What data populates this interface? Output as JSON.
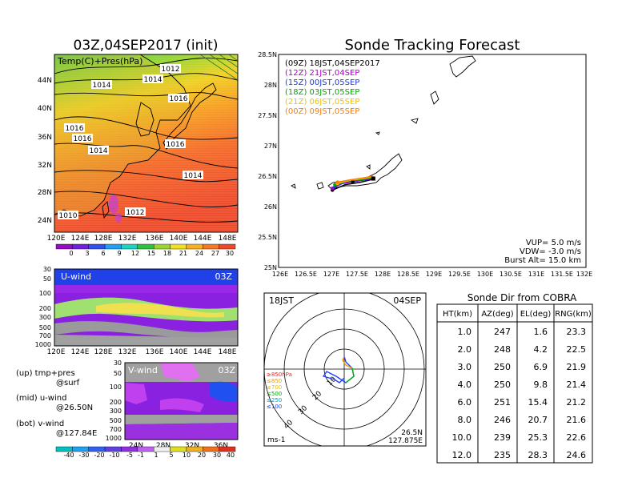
{
  "map_panel": {
    "title": "03Z,04SEP2017 (init)",
    "field_label": "Temp(C)+Pres(hPa)",
    "lon_ticks": [
      "120E",
      "124E",
      "128E",
      "132E",
      "136E",
      "140E",
      "144E",
      "148E"
    ],
    "lat_ticks": [
      "24N",
      "28N",
      "32N",
      "36N",
      "40N",
      "44N"
    ],
    "isobar_labels": [
      "1012",
      "1014",
      "1014",
      "1016",
      "1016",
      "1016",
      "1014",
      "1016",
      "1014",
      "1012",
      "1010"
    ],
    "colorbar_ticks": [
      "0",
      "3",
      "6",
      "9",
      "12",
      "15",
      "18",
      "21",
      "24",
      "27",
      "30"
    ]
  },
  "u_panel": {
    "label": "U-wind",
    "time": "03Z",
    "y_ticks": [
      "30",
      "50",
      "100",
      "200",
      "300",
      "500",
      "700",
      "1000"
    ],
    "x_ticks": [
      "120E",
      "124E",
      "128E",
      "132E",
      "136E",
      "140E",
      "144E",
      "148E"
    ]
  },
  "v_panel": {
    "label": "V-wind",
    "time": "03Z",
    "y_ticks": [
      "30",
      "50",
      "100",
      "200",
      "300",
      "500",
      "700",
      "1000"
    ],
    "x_ticks": [
      "24N",
      "28N",
      "32N",
      "36N"
    ],
    "wind_colorbar_ticks": [
      "-40",
      "-30",
      "-20",
      "-10",
      "-5",
      "-1",
      "1",
      "5",
      "10",
      "20",
      "30",
      "40"
    ]
  },
  "legend_notes": {
    "up1": "(up) tmp+pres",
    "up2": "@surf",
    "mid1": "(mid) u-wind",
    "mid2": "@26.50N",
    "bot1": "(bot) v-wind",
    "bot2": "@127.84E"
  },
  "tracking": {
    "title": "Sonde Tracking Forecast",
    "lat_ticks": [
      "25N",
      "25.5N",
      "26N",
      "26.5N",
      "27N",
      "27.5N",
      "28N",
      "28.5N"
    ],
    "lon_ticks": [
      "126E",
      "126.5E",
      "127E",
      "127.5E",
      "128E",
      "128.5E",
      "129E",
      "129.5E",
      "130E",
      "130.5E",
      "131E",
      "131.5E",
      "132E"
    ],
    "legend": [
      {
        "label": "(09Z)  18JST,04SEP2017",
        "color": "#000000"
      },
      {
        "label": "(12Z)  21JST,04SEP",
        "color": "#aa00cc"
      },
      {
        "label": "(15Z)  00JST,05SEP",
        "color": "#1a3ae6"
      },
      {
        "label": "(18Z)  03JST,05SEP",
        "color": "#00a800"
      },
      {
        "label": "(21Z)  06JST,05SEP",
        "color": "#f0c000"
      },
      {
        "label": "(00Z)  09JST,05SEP",
        "color": "#ff7a00"
      }
    ],
    "params": [
      "VUP= 5.0 m/s",
      "VDW= -3.0 m/s",
      "Burst Alt= 15.0 km"
    ]
  },
  "hodograph": {
    "time": "18JST",
    "date": "04SEP",
    "ring_labels": [
      "10",
      "20",
      "30",
      "40"
    ],
    "level_legend": [
      {
        "label": "≥850hPa",
        "color": "#ff2020"
      },
      {
        "label": "≤850",
        "color": "#ff9900"
      },
      {
        "label": "≤700",
        "color": "#e6c000"
      },
      {
        "label": "≤500",
        "color": "#00b000"
      },
      {
        "label": "≤250",
        "color": "#00a0d0"
      },
      {
        "label": "≤100",
        "color": "#2040ff"
      }
    ],
    "unit": "ms-1",
    "lat": "26.5N",
    "lon": "127.875E"
  },
  "sonde_dir": {
    "title": "Sonde Dir from COBRA",
    "headers": [
      "HT(km)",
      "AZ(deg)",
      "EL(deg)",
      "RNG(km)"
    ],
    "rows": [
      [
        "1.0",
        "247",
        "1.6",
        "23.3"
      ],
      [
        "2.0",
        "248",
        "4.2",
        "22.5"
      ],
      [
        "3.0",
        "250",
        "6.9",
        "21.9"
      ],
      [
        "4.0",
        "250",
        "9.8",
        "21.4"
      ],
      [
        "6.0",
        "251",
        "15.4",
        "21.2"
      ],
      [
        "8.0",
        "246",
        "20.7",
        "21.6"
      ],
      [
        "10.0",
        "239",
        "25.3",
        "22.6"
      ],
      [
        "12.0",
        "235",
        "28.3",
        "24.6"
      ]
    ]
  },
  "chart_data": [
    {
      "type": "line",
      "title": "Sonde Tracking Forecast",
      "xlabel": "",
      "ylabel": "",
      "xlim": [
        126,
        132
      ],
      "ylim": [
        25,
        28.5
      ],
      "series": [
        {
          "name": "(09Z) 18JST,04SEP2017",
          "x": [
            127.85,
            127.6,
            127.3,
            127.05
          ],
          "y": [
            26.45,
            26.4,
            26.36,
            26.27
          ]
        },
        {
          "name": "(12Z) 21JST,04SEP",
          "x": [
            127.85,
            127.55,
            127.25,
            127.05
          ],
          "y": [
            26.46,
            26.42,
            26.38,
            26.3
          ]
        },
        {
          "name": "(15Z) 00JST,05SEP",
          "x": [
            127.85,
            127.6,
            127.3,
            127.1
          ],
          "y": [
            26.47,
            26.43,
            26.4,
            26.33
          ]
        },
        {
          "name": "(18Z) 03JST,05SEP",
          "x": [
            127.85,
            127.6,
            127.35,
            127.1
          ],
          "y": [
            26.48,
            26.44,
            26.42,
            26.36
          ]
        },
        {
          "name": "(21Z) 06JST,05SEP",
          "x": [
            127.85,
            127.65,
            127.4,
            127.15
          ],
          "y": [
            26.49,
            26.46,
            26.43,
            26.38
          ]
        },
        {
          "name": "(00Z) 09JST,05SEP",
          "x": [
            127.85,
            127.65,
            127.4,
            127.15
          ],
          "y": [
            26.5,
            26.47,
            26.44,
            26.4
          ]
        }
      ]
    },
    {
      "type": "table",
      "title": "Sonde Dir from COBRA",
      "columns": [
        "HT(km)",
        "AZ(deg)",
        "EL(deg)",
        "RNG(km)"
      ],
      "rows": [
        [
          1.0,
          247,
          1.6,
          23.3
        ],
        [
          2.0,
          248,
          4.2,
          22.5
        ],
        [
          3.0,
          250,
          6.9,
          21.9
        ],
        [
          4.0,
          250,
          9.8,
          21.4
        ],
        [
          6.0,
          251,
          15.4,
          21.2
        ],
        [
          8.0,
          246,
          20.7,
          21.6
        ],
        [
          10.0,
          239,
          25.3,
          22.6
        ],
        [
          12.0,
          235,
          28.3,
          24.6
        ]
      ]
    }
  ]
}
